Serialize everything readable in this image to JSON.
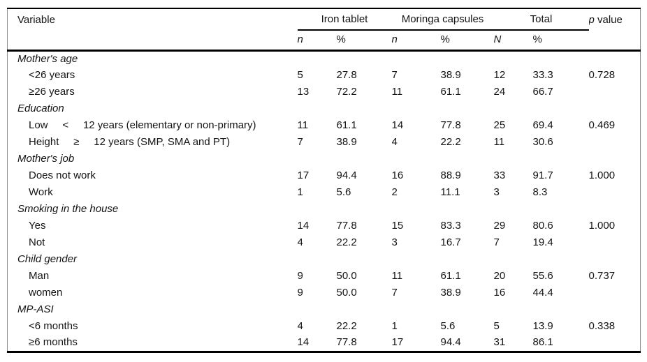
{
  "table": {
    "header": {
      "variable": "Variable",
      "group_iron": "Iron tablet",
      "group_moringa": "Moringa capsules",
      "group_total": "Total",
      "p_italic": "p",
      "p_rest": " value",
      "subheaders": [
        "n",
        "%",
        "n",
        "%",
        "N",
        "%"
      ]
    },
    "sections": [
      {
        "category": "Mother's age",
        "rows": [
          {
            "label": "<26 years",
            "values": [
              "5",
              "27.8",
              "7",
              "38.9",
              "12",
              "33.3"
            ],
            "p": "0.728"
          },
          {
            "label": "≥26 years",
            "values": [
              "13",
              "72.2",
              "11",
              "61.1",
              "24",
              "66.7"
            ],
            "p": ""
          }
        ]
      },
      {
        "category": "Education",
        "rows": [
          {
            "label": "Low     <     12 years (elementary or non-primary)",
            "values": [
              "11",
              "61.1",
              "14",
              "77.8",
              "25",
              "69.4"
            ],
            "p": "0.469"
          },
          {
            "label": "Height     ≥     12 years (SMP, SMA and PT)",
            "values": [
              "7",
              "38.9",
              "4",
              "22.2",
              "11",
              "30.6"
            ],
            "p": ""
          }
        ]
      },
      {
        "category": "Mother's job",
        "rows": [
          {
            "label": "Does not work",
            "values": [
              "17",
              "94.4",
              "16",
              "88.9",
              "33",
              "91.7"
            ],
            "p": "1.000"
          },
          {
            "label": "Work",
            "values": [
              "1",
              "5.6",
              "2",
              "11.1",
              "3",
              "8.3"
            ],
            "p": ""
          }
        ]
      },
      {
        "category": "Smoking in the house",
        "rows": [
          {
            "label": "Yes",
            "values": [
              "14",
              "77.8",
              "15",
              "83.3",
              "29",
              "80.6"
            ],
            "p": "1.000"
          },
          {
            "label": "Not",
            "values": [
              "4",
              "22.2",
              "3",
              "16.7",
              "7",
              "19.4"
            ],
            "p": ""
          }
        ]
      },
      {
        "category": "Child gender",
        "rows": [
          {
            "label": "Man",
            "values": [
              "9",
              "50.0",
              "11",
              "61.1",
              "20",
              "55.6"
            ],
            "p": "0.737"
          },
          {
            "label": "women",
            "values": [
              "9",
              "50.0",
              "7",
              "38.9",
              "16",
              "44.4"
            ],
            "p": ""
          }
        ]
      },
      {
        "category": "MP-ASI",
        "rows": [
          {
            "label": "<6 months",
            "values": [
              "4",
              "22.2",
              "1",
              "5.6",
              "5",
              "13.9"
            ],
            "p": "0.338"
          },
          {
            "label": "≥6 months",
            "values": [
              "14",
              "77.8",
              "17",
              "94.4",
              "31",
              "86.1"
            ],
            "p": ""
          }
        ]
      }
    ]
  },
  "colors": {
    "text": "#141414",
    "rule": "#000000",
    "frame": "#8f8f8f",
    "background": "#ffffff"
  }
}
